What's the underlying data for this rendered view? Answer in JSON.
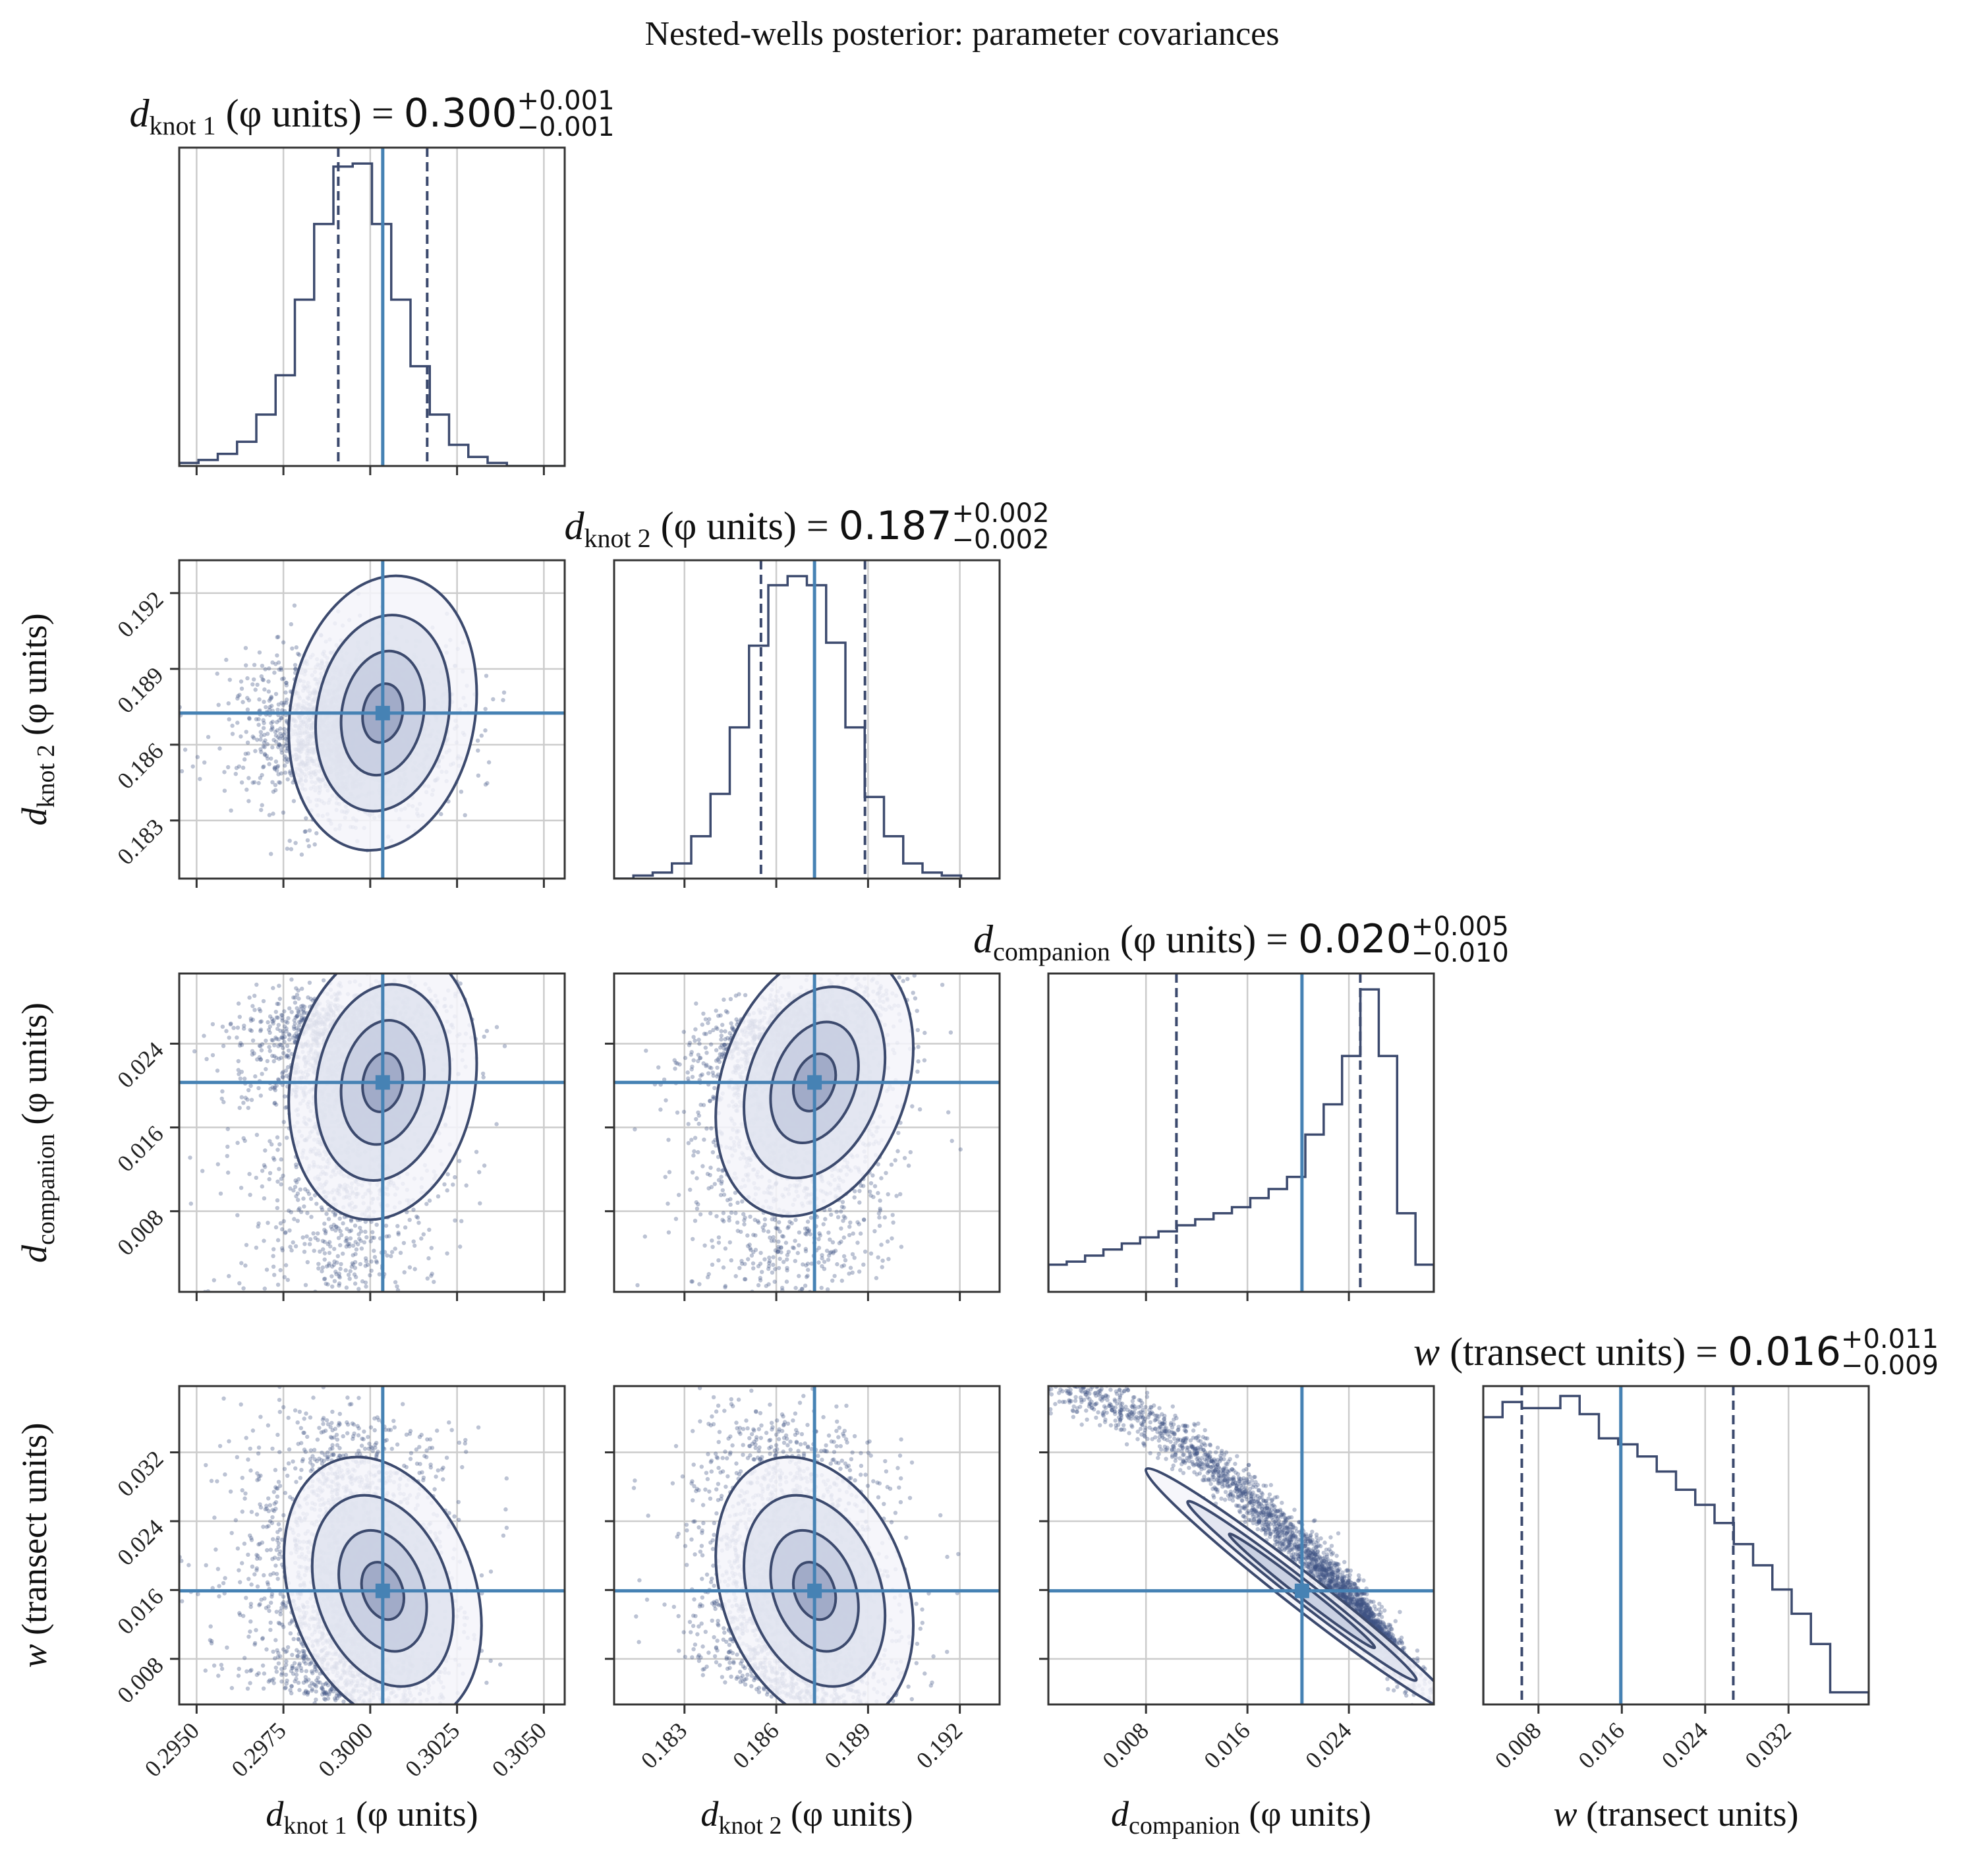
{
  "figure": {
    "title": "Nested-wells posterior: parameter covariances"
  },
  "colors": {
    "hist_line": "#3c4a6e",
    "truth_line": "#4682b4",
    "scatter": "#3e5283",
    "grid": "#cccccc",
    "frame": "#333333"
  },
  "chart_data": {
    "type": "scatter",
    "subtype": "corner-plot",
    "grid": true,
    "parameters": [
      {
        "id": "dknot1",
        "symbol": "d",
        "subscript": "knot 1",
        "unit_text": " (φ units)",
        "axis_label": "d_knot 1 (φ units)",
        "range": [
          0.2945,
          0.3056
        ],
        "ticks": [
          0.295,
          0.2975,
          0.3,
          0.3025,
          0.305
        ],
        "tick_labels": [
          "0.2950",
          "0.2975",
          "0.3000",
          "0.3025",
          "0.3050"
        ],
        "truth": 0.30036,
        "quantiles": [
          0.29908,
          0.30164
        ],
        "title_value": "0.300",
        "title_plus": "+0.001",
        "title_minus": "−0.001",
        "hist": [
          0.01,
          0.02,
          0.04,
          0.08,
          0.17,
          0.3,
          0.55,
          0.8,
          0.99,
          1.0,
          0.8,
          0.55,
          0.33,
          0.17,
          0.07,
          0.03,
          0.01,
          0.0,
          0.0,
          0.0
        ]
      },
      {
        "id": "dknot2",
        "symbol": "d",
        "subscript": "knot 2",
        "unit_text": " (φ units)",
        "axis_label": "d_knot 2 (φ units)",
        "range": [
          0.1807,
          0.1933
        ],
        "ticks": [
          0.183,
          0.186,
          0.189,
          0.192
        ],
        "tick_labels": [
          "0.183",
          "0.186",
          "0.189",
          "0.192"
        ],
        "truth": 0.18725,
        "quantiles": [
          0.1855,
          0.1889
        ],
        "title_value": "0.187",
        "title_plus": "+0.002",
        "title_minus": "−0.002",
        "hist": [
          0.0,
          0.01,
          0.02,
          0.05,
          0.14,
          0.28,
          0.5,
          0.77,
          0.97,
          1.0,
          0.97,
          0.78,
          0.5,
          0.27,
          0.14,
          0.05,
          0.02,
          0.01,
          0.0,
          0.0
        ]
      },
      {
        "id": "dcomp",
        "symbol": "d",
        "subscript": "companion",
        "unit_text": " (φ units)",
        "axis_label": "d_companion (φ units)",
        "range": [
          0.0003,
          0.0307
        ],
        "ticks": [
          0.008,
          0.016,
          0.024
        ],
        "tick_labels": [
          "0.008",
          "0.016",
          "0.024"
        ],
        "truth": 0.0203,
        "quantiles": [
          0.0104,
          0.0249
        ],
        "title_value": "0.020",
        "title_plus": "+0.005",
        "title_minus": "−0.010",
        "hist": [
          0.09,
          0.1,
          0.12,
          0.14,
          0.16,
          0.18,
          0.2,
          0.22,
          0.24,
          0.26,
          0.28,
          0.31,
          0.34,
          0.38,
          0.52,
          0.62,
          0.78,
          1.0,
          0.78,
          0.26,
          0.09
        ]
      },
      {
        "id": "w",
        "symbol": "w",
        "subscript": "",
        "unit_text": " (transect units)",
        "axis_label": "w (transect units)",
        "range": [
          0.0027,
          0.0397
        ],
        "ticks": [
          0.008,
          0.016,
          0.024,
          0.032
        ],
        "tick_labels": [
          "0.008",
          "0.016",
          "0.024",
          "0.032"
        ],
        "truth": 0.0159,
        "quantiles": [
          0.0064,
          0.0267
        ],
        "title_value": "0.016",
        "title_plus": "+0.011",
        "title_minus": "−0.009",
        "hist": [
          0.95,
          1.0,
          0.98,
          0.98,
          1.02,
          0.96,
          0.88,
          0.86,
          0.82,
          0.77,
          0.71,
          0.66,
          0.6,
          0.53,
          0.46,
          0.38,
          0.3,
          0.2,
          0.04,
          0.04
        ]
      }
    ],
    "correlations": [
      {
        "x": "dknot1",
        "y": "dknot2",
        "rho": 0.1
      },
      {
        "x": "dknot1",
        "y": "dcomp",
        "rho": 0.15
      },
      {
        "x": "dknot2",
        "y": "dcomp",
        "rho": 0.5
      },
      {
        "x": "dknot1",
        "y": "w",
        "rho": -0.25
      },
      {
        "x": "dknot2",
        "y": "w",
        "rho": -0.6
      },
      {
        "x": "dcomp",
        "y": "w",
        "rho": -0.97
      }
    ]
  }
}
